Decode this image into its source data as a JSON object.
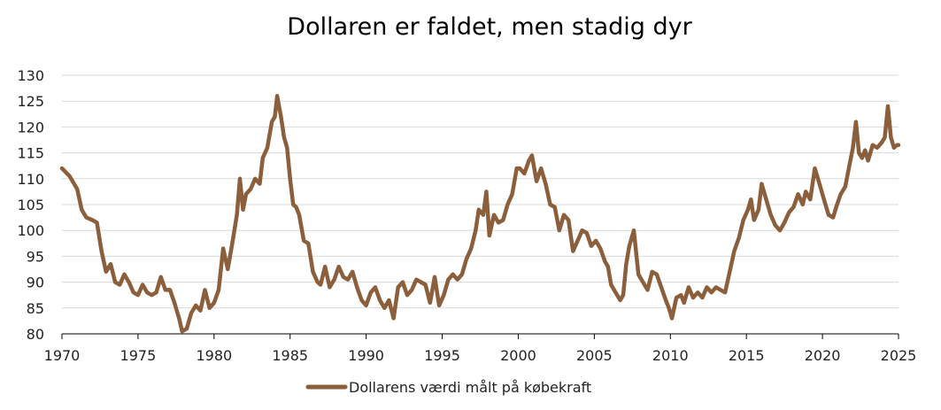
{
  "chart_data": {
    "type": "line",
    "title": "Dollaren er faldet, men stadig dyr",
    "xlabel": "",
    "ylabel": "",
    "xlim": [
      1970,
      2025
    ],
    "ylim": [
      80,
      130
    ],
    "x_ticks": [
      "1970",
      "1975",
      "1980",
      "1985",
      "1990",
      "1995",
      "2000",
      "2005",
      "2010",
      "2015",
      "2020",
      "2025"
    ],
    "y_ticks": [
      "80",
      "85",
      "90",
      "95",
      "100",
      "105",
      "110",
      "115",
      "120",
      "125",
      "130"
    ],
    "grid": "horizontal",
    "legend_position": "bottom-center",
    "series": [
      {
        "name": "Dollarens værdi målt på købekraft",
        "color": "#8B5E3C",
        "points": [
          [
            1970.0,
            112.0
          ],
          [
            1970.5,
            110.5
          ],
          [
            1971.0,
            108.0
          ],
          [
            1971.3,
            104.0
          ],
          [
            1971.6,
            102.5
          ],
          [
            1972.0,
            102.0
          ],
          [
            1972.3,
            101.5
          ],
          [
            1972.6,
            96.0
          ],
          [
            1972.9,
            92.0
          ],
          [
            1973.2,
            93.5
          ],
          [
            1973.5,
            90.0
          ],
          [
            1973.8,
            89.5
          ],
          [
            1974.1,
            91.5
          ],
          [
            1974.4,
            90.0
          ],
          [
            1974.7,
            88.0
          ],
          [
            1975.0,
            87.5
          ],
          [
            1975.3,
            89.5
          ],
          [
            1975.6,
            88.0
          ],
          [
            1975.9,
            87.5
          ],
          [
            1976.2,
            88.0
          ],
          [
            1976.5,
            91.0
          ],
          [
            1976.8,
            88.5
          ],
          [
            1977.1,
            88.5
          ],
          [
            1977.4,
            86.0
          ],
          [
            1977.7,
            83.0
          ],
          [
            1977.9,
            80.5
          ],
          [
            1978.2,
            81.0
          ],
          [
            1978.5,
            84.0
          ],
          [
            1978.8,
            85.5
          ],
          [
            1979.1,
            84.5
          ],
          [
            1979.4,
            88.5
          ],
          [
            1979.7,
            85.0
          ],
          [
            1980.0,
            86.0
          ],
          [
            1980.3,
            88.5
          ],
          [
            1980.6,
            96.5
          ],
          [
            1980.9,
            92.5
          ],
          [
            1981.2,
            97.5
          ],
          [
            1981.5,
            103.0
          ],
          [
            1981.7,
            110.0
          ],
          [
            1981.9,
            104.0
          ],
          [
            1982.1,
            107.0
          ],
          [
            1982.4,
            108.0
          ],
          [
            1982.7,
            110.0
          ],
          [
            1983.0,
            109.0
          ],
          [
            1983.2,
            114.0
          ],
          [
            1983.5,
            116.0
          ],
          [
            1983.8,
            121.0
          ],
          [
            1984.0,
            122.0
          ],
          [
            1984.15,
            126.0
          ],
          [
            1984.4,
            122.0
          ],
          [
            1984.6,
            118.0
          ],
          [
            1984.8,
            116.0
          ],
          [
            1985.0,
            110.0
          ],
          [
            1985.2,
            105.0
          ],
          [
            1985.4,
            104.5
          ],
          [
            1985.6,
            103.0
          ],
          [
            1985.9,
            98.0
          ],
          [
            1986.2,
            97.5
          ],
          [
            1986.5,
            92.0
          ],
          [
            1986.8,
            90.0
          ],
          [
            1987.0,
            89.5
          ],
          [
            1987.3,
            93.0
          ],
          [
            1987.6,
            89.0
          ],
          [
            1987.9,
            90.5
          ],
          [
            1988.2,
            93.0
          ],
          [
            1988.5,
            91.0
          ],
          [
            1988.8,
            90.5
          ],
          [
            1989.1,
            92.0
          ],
          [
            1989.4,
            89.0
          ],
          [
            1989.7,
            86.5
          ],
          [
            1990.0,
            85.5
          ],
          [
            1990.3,
            88.0
          ],
          [
            1990.6,
            89.0
          ],
          [
            1990.9,
            86.5
          ],
          [
            1991.2,
            85.0
          ],
          [
            1991.5,
            86.5
          ],
          [
            1991.8,
            83.0
          ],
          [
            1992.1,
            89.0
          ],
          [
            1992.4,
            90.0
          ],
          [
            1992.7,
            87.5
          ],
          [
            1993.0,
            88.5
          ],
          [
            1993.3,
            90.5
          ],
          [
            1993.6,
            90.0
          ],
          [
            1993.9,
            89.5
          ],
          [
            1994.2,
            86.0
          ],
          [
            1994.5,
            91.0
          ],
          [
            1994.8,
            85.5
          ],
          [
            1995.1,
            87.5
          ],
          [
            1995.4,
            90.5
          ],
          [
            1995.7,
            91.5
          ],
          [
            1996.0,
            90.5
          ],
          [
            1996.3,
            91.5
          ],
          [
            1996.6,
            94.5
          ],
          [
            1996.9,
            96.5
          ],
          [
            1997.2,
            100.0
          ],
          [
            1997.4,
            104.0
          ],
          [
            1997.7,
            103.0
          ],
          [
            1997.9,
            107.5
          ],
          [
            1998.1,
            99.0
          ],
          [
            1998.4,
            103.0
          ],
          [
            1998.7,
            101.5
          ],
          [
            1999.0,
            102.0
          ],
          [
            1999.3,
            105.0
          ],
          [
            1999.6,
            107.0
          ],
          [
            1999.9,
            112.0
          ],
          [
            2000.1,
            112.0
          ],
          [
            2000.4,
            111.0
          ],
          [
            2000.7,
            113.5
          ],
          [
            2000.9,
            114.5
          ],
          [
            2001.2,
            109.5
          ],
          [
            2001.5,
            112.0
          ],
          [
            2001.8,
            109.0
          ],
          [
            2002.1,
            105.0
          ],
          [
            2002.4,
            104.5
          ],
          [
            2002.7,
            100.0
          ],
          [
            2003.0,
            103.0
          ],
          [
            2003.3,
            102.0
          ],
          [
            2003.6,
            96.0
          ],
          [
            2003.9,
            98.0
          ],
          [
            2004.2,
            100.0
          ],
          [
            2004.5,
            99.5
          ],
          [
            2004.8,
            97.0
          ],
          [
            2005.1,
            98.0
          ],
          [
            2005.4,
            96.5
          ],
          [
            2005.7,
            94.0
          ],
          [
            2005.9,
            93.0
          ],
          [
            2006.1,
            89.5
          ],
          [
            2006.4,
            88.0
          ],
          [
            2006.7,
            86.5
          ],
          [
            2006.9,
            87.5
          ],
          [
            2007.1,
            93.5
          ],
          [
            2007.3,
            97.0
          ],
          [
            2007.6,
            100.0
          ],
          [
            2007.9,
            91.5
          ],
          [
            2008.2,
            90.0
          ],
          [
            2008.5,
            88.5
          ],
          [
            2008.8,
            92.0
          ],
          [
            2009.1,
            91.5
          ],
          [
            2009.4,
            89.0
          ],
          [
            2009.7,
            86.5
          ],
          [
            2009.9,
            85.0
          ],
          [
            2010.1,
            83.0
          ],
          [
            2010.4,
            87.0
          ],
          [
            2010.7,
            87.5
          ],
          [
            2010.9,
            86.0
          ],
          [
            2011.2,
            89.0
          ],
          [
            2011.5,
            87.0
          ],
          [
            2011.8,
            88.0
          ],
          [
            2012.1,
            87.0
          ],
          [
            2012.4,
            89.0
          ],
          [
            2012.7,
            88.0
          ],
          [
            2013.0,
            89.0
          ],
          [
            2013.3,
            88.5
          ],
          [
            2013.6,
            88.0
          ],
          [
            2013.9,
            92.0
          ],
          [
            2014.2,
            96.0
          ],
          [
            2014.5,
            98.5
          ],
          [
            2014.8,
            102.0
          ],
          [
            2015.1,
            104.0
          ],
          [
            2015.3,
            106.0
          ],
          [
            2015.5,
            102.0
          ],
          [
            2015.8,
            104.0
          ],
          [
            2016.0,
            109.0
          ],
          [
            2016.3,
            106.0
          ],
          [
            2016.6,
            103.0
          ],
          [
            2016.9,
            101.0
          ],
          [
            2017.2,
            100.0
          ],
          [
            2017.5,
            101.5
          ],
          [
            2017.8,
            103.5
          ],
          [
            2018.1,
            104.5
          ],
          [
            2018.4,
            107.0
          ],
          [
            2018.7,
            105.0
          ],
          [
            2018.9,
            107.5
          ],
          [
            2019.2,
            106.0
          ],
          [
            2019.5,
            112.0
          ],
          [
            2019.8,
            109.0
          ],
          [
            2020.1,
            106.0
          ],
          [
            2020.4,
            103.0
          ],
          [
            2020.7,
            102.5
          ],
          [
            2020.9,
            104.5
          ],
          [
            2021.2,
            107.0
          ],
          [
            2021.5,
            108.5
          ],
          [
            2021.8,
            113.0
          ],
          [
            2022.0,
            116.0
          ],
          [
            2022.2,
            121.0
          ],
          [
            2022.4,
            115.0
          ],
          [
            2022.6,
            114.0
          ],
          [
            2022.8,
            115.5
          ],
          [
            2023.0,
            113.5
          ],
          [
            2023.3,
            116.5
          ],
          [
            2023.6,
            116.0
          ],
          [
            2023.9,
            117.0
          ],
          [
            2024.1,
            118.0
          ],
          [
            2024.3,
            124.0
          ],
          [
            2024.5,
            118.0
          ],
          [
            2024.7,
            116.0
          ],
          [
            2024.9,
            116.5
          ],
          [
            2025.0,
            116.5
          ]
        ]
      }
    ]
  }
}
